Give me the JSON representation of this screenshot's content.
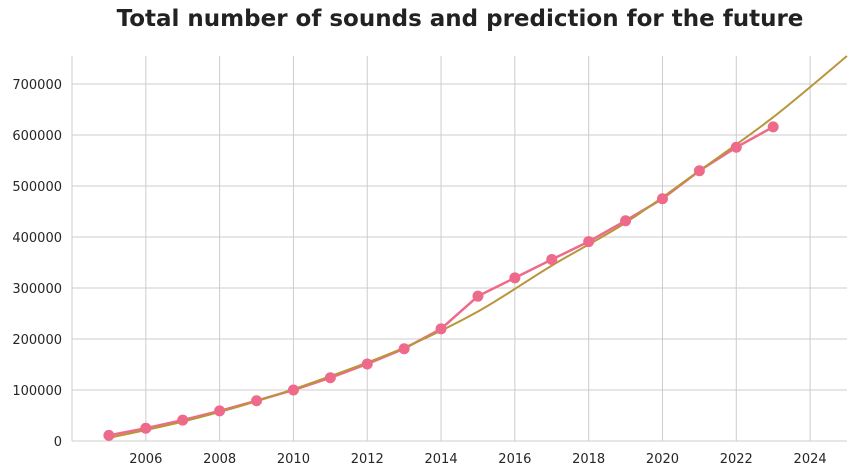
{
  "chart_data": {
    "type": "line",
    "title": "Total number of sounds and prediction for the future",
    "xlabel": "",
    "ylabel": "",
    "xlim": [
      2004,
      2025
    ],
    "ylim": [
      0,
      755000
    ],
    "xticks": [
      2006,
      2008,
      2010,
      2012,
      2014,
      2016,
      2018,
      2020,
      2022,
      2024
    ],
    "yticks": [
      0,
      100000,
      200000,
      300000,
      400000,
      500000,
      600000,
      700000
    ],
    "xtick_labels": [
      "2006",
      "2008",
      "2010",
      "2012",
      "2014",
      "2016",
      "2018",
      "2020",
      "2022",
      "2024"
    ],
    "ytick_labels": [
      "0",
      "100000",
      "200000",
      "300000",
      "400000",
      "500000",
      "600000",
      "700000"
    ],
    "grid": true,
    "legend": "none",
    "series": [
      {
        "kind": "observed",
        "color": "#ee6a8a",
        "marker": "circle",
        "x": [
          2005,
          2006,
          2007,
          2008,
          2009,
          2010,
          2011,
          2012,
          2013,
          2014,
          2015,
          2016,
          2017,
          2018,
          2019,
          2020,
          2021,
          2022,
          2023
        ],
        "values": [
          11000,
          25000,
          41000,
          59000,
          79000,
          100000,
          124000,
          151000,
          181000,
          220000,
          284000,
          320000,
          356000,
          391000,
          432000,
          475000,
          530000,
          576000,
          616000
        ]
      },
      {
        "kind": "fit",
        "color": "#b8963a",
        "marker": "none",
        "x": [
          2005,
          2007,
          2009,
          2011,
          2013,
          2015,
          2017,
          2019,
          2021,
          2023,
          2025
        ],
        "values": [
          6000,
          38000,
          78000,
          127000,
          183000,
          254000,
          344000,
          428000,
          530000,
          635000,
          755000
        ]
      }
    ]
  }
}
